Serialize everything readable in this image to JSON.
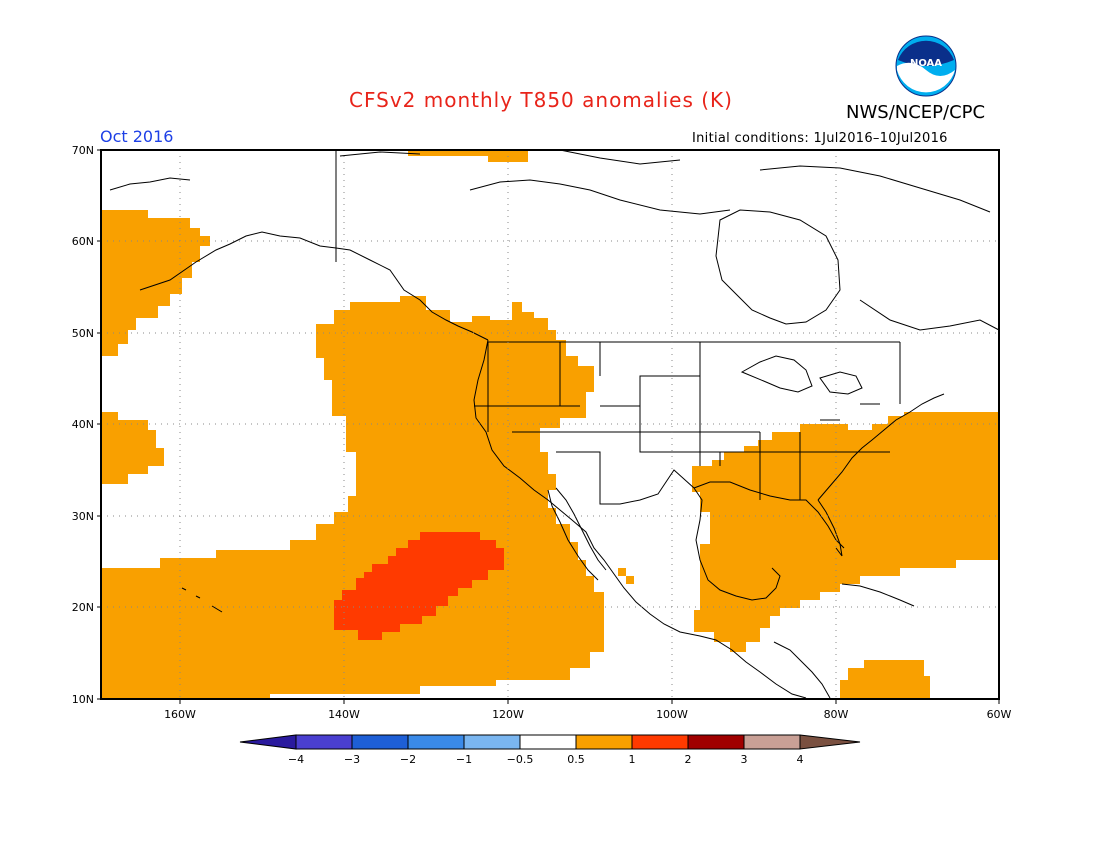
{
  "header": {
    "title": "CFSv2 monthly T850 anomalies (K)",
    "agency": "NWS/NCEP/CPC",
    "logo_text": "NOAA",
    "month": "Oct 2016",
    "initial_conditions": "Initial conditions: 1Jul2016–10Jul2016"
  },
  "map": {
    "lat_labels": [
      "70N",
      "60N",
      "50N",
      "40N",
      "30N",
      "20N",
      "10N"
    ],
    "lon_labels": [
      "160W",
      "140W",
      "120W",
      "100W",
      "80W",
      "60W"
    ],
    "region": "North America / Northeast Pacific"
  },
  "colorbar": {
    "labels": [
      "−4",
      "−3",
      "−2",
      "−1",
      "−0.5",
      "0.5",
      "1",
      "2",
      "3",
      "4"
    ],
    "colors": [
      "#2a1a9e",
      "#4a3fd0",
      "#1e5fd6",
      "#3a8ae8",
      "#7ab6f0",
      "#ffffff",
      "#f9a000",
      "#ff3a00",
      "#a00000",
      "#c9a096",
      "#7a5040"
    ]
  },
  "colors": {
    "anomaly_0_5_to_1": "#f9a000",
    "anomaly_1_to_2": "#ff3a00",
    "title": "#e8241a",
    "month": "#1e40e6"
  }
}
